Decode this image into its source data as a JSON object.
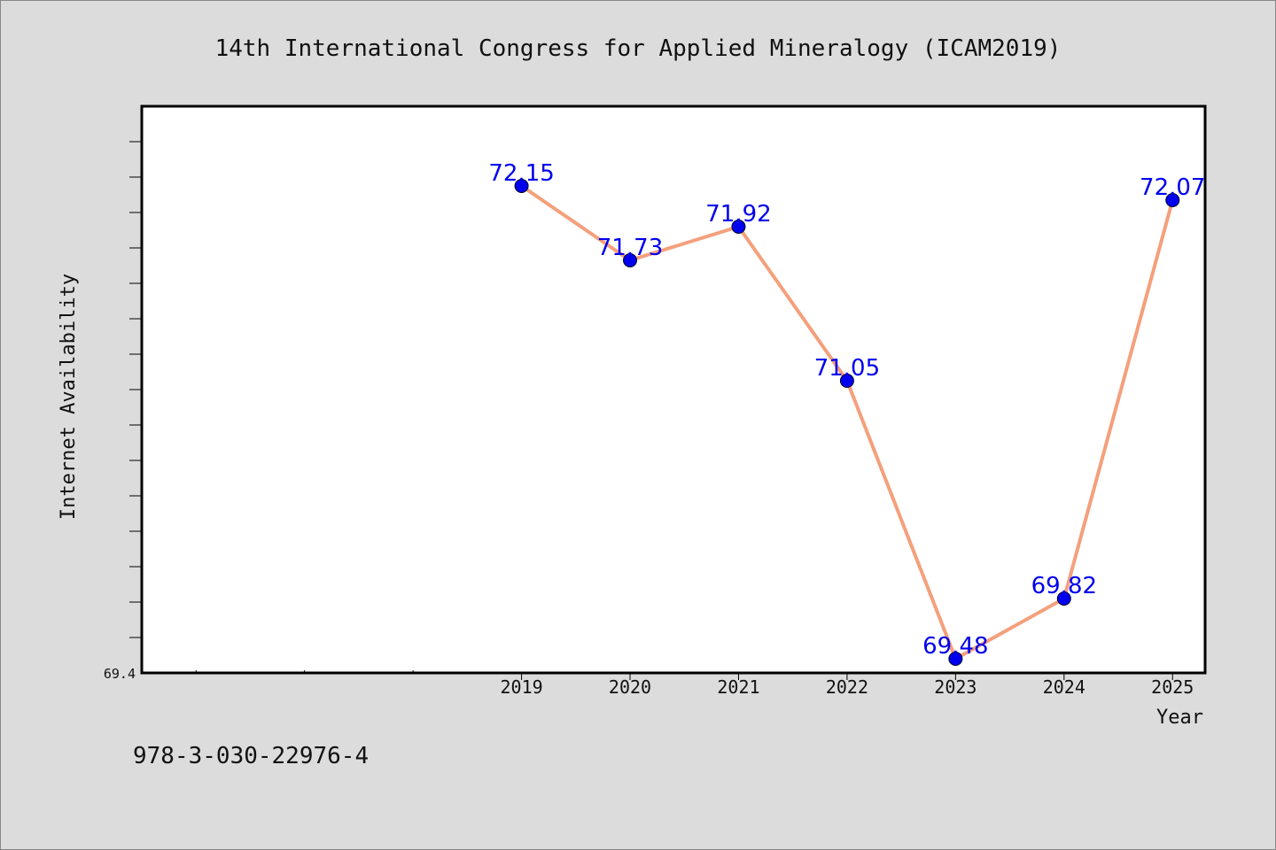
{
  "chart_data": {
    "type": "line",
    "title": "14th International Congress for Applied Mineralogy (ICAM2019)",
    "xlabel": "Year",
    "ylabel": "Internet Availability",
    "x": [
      "2019",
      "2020",
      "2021",
      "2022",
      "2023",
      "2024",
      "2025"
    ],
    "series": [
      {
        "values": [
          72.15,
          71.73,
          71.92,
          71.05,
          69.48,
          69.82,
          72.07
        ]
      }
    ],
    "ylim": [
      69.4,
      72.6
    ],
    "y_tick_labels": [
      "69.4"
    ],
    "xlim": [
      2015.5,
      2025.3
    ],
    "grid": false,
    "legend": "none",
    "colors": {
      "line": "#f4a07c",
      "marker": "#0000ee",
      "data_label": "#0000ee",
      "plot_background": "#ffffff",
      "page_background": "#dcdcdc"
    }
  },
  "footnote": "978-3-030-22976-4"
}
